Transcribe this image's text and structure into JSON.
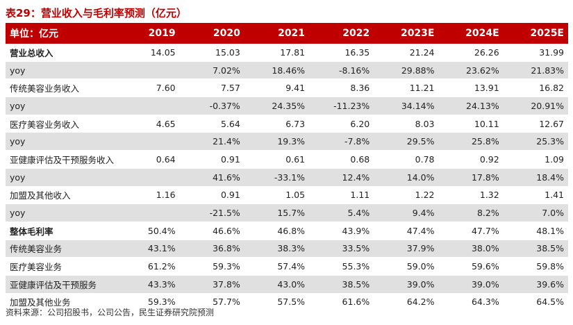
{
  "title": "表29：营业收入与毛利率预测（亿元）",
  "table": {
    "header": [
      "单位：亿元",
      "2019",
      "2020",
      "2021",
      "2022",
      "2023E",
      "2024E",
      "2025E"
    ],
    "rows": [
      {
        "label": "营业总收入",
        "bold": true,
        "shade": false,
        "values": [
          "14.05",
          "15.03",
          "17.81",
          "16.35",
          "21.24",
          "26.26",
          "31.99"
        ]
      },
      {
        "label": "yoy",
        "bold": false,
        "shade": true,
        "values": [
          "",
          "7.02%",
          "18.46%",
          "-8.16%",
          "29.88%",
          "23.62%",
          "21.83%"
        ]
      },
      {
        "label": "传统美容业务收入",
        "bold": false,
        "shade": false,
        "values": [
          "7.60",
          "7.57",
          "9.41",
          "8.36",
          "11.21",
          "13.91",
          "16.82"
        ]
      },
      {
        "label": "yoy",
        "bold": false,
        "shade": true,
        "values": [
          "",
          "-0.37%",
          "24.35%",
          "-11.23%",
          "34.14%",
          "24.13%",
          "20.91%"
        ]
      },
      {
        "label": "医疗美容业务收入",
        "bold": false,
        "shade": false,
        "values": [
          "4.65",
          "5.64",
          "6.73",
          "6.20",
          "8.03",
          "10.11",
          "12.67"
        ]
      },
      {
        "label": "yoy",
        "bold": false,
        "shade": true,
        "values": [
          "",
          "21.4%",
          "19.3%",
          "-7.8%",
          "29.5%",
          "25.8%",
          "25.3%"
        ]
      },
      {
        "label": "亚健康评估及干预服务收入",
        "bold": false,
        "shade": false,
        "values": [
          "0.64",
          "0.91",
          "0.61",
          "0.68",
          "0.78",
          "0.92",
          "1.09"
        ]
      },
      {
        "label": "yoy",
        "bold": false,
        "shade": true,
        "values": [
          "",
          "41.6%",
          "-33.1%",
          "12.4%",
          "14.0%",
          "17.8%",
          "18.4%"
        ]
      },
      {
        "label": "加盟及其他收入",
        "bold": false,
        "shade": false,
        "values": [
          "1.16",
          "0.91",
          "1.05",
          "1.11",
          "1.22",
          "1.32",
          "1.41"
        ]
      },
      {
        "label": "yoy",
        "bold": false,
        "shade": true,
        "values": [
          "",
          "-21.5%",
          "15.7%",
          "5.4%",
          "9.4%",
          "8.2%",
          "7.0%"
        ]
      },
      {
        "label": "整体毛利率",
        "bold": true,
        "shade": false,
        "values": [
          "50.4%",
          "46.6%",
          "46.8%",
          "43.9%",
          "47.4%",
          "47.7%",
          "48.1%"
        ]
      },
      {
        "label": "传统美容业务",
        "bold": false,
        "shade": true,
        "values": [
          "43.1%",
          "36.8%",
          "38.3%",
          "33.5%",
          "37.9%",
          "38.0%",
          "38.5%"
        ]
      },
      {
        "label": "医疗美容业务",
        "bold": false,
        "shade": false,
        "values": [
          "61.2%",
          "59.3%",
          "57.4%",
          "55.3%",
          "59.0%",
          "59.6%",
          "59.8%"
        ]
      },
      {
        "label": "亚健康评估及干预服务",
        "bold": false,
        "shade": true,
        "values": [
          "43.3%",
          "37.8%",
          "43.0%",
          "38.5%",
          "39.0%",
          "39.0%",
          "39.6%"
        ]
      },
      {
        "label": "加盟及其他业务",
        "bold": false,
        "shade": false,
        "values": [
          "59.3%",
          "57.7%",
          "57.5%",
          "61.6%",
          "64.2%",
          "64.3%",
          "64.5%"
        ]
      }
    ]
  },
  "source": "资料来源：公司招股书，公司公告，民生证券研究院预测",
  "colors": {
    "header_bg": "#c00000",
    "title": "#c00000",
    "row_shade": "#e0e0e0"
  }
}
